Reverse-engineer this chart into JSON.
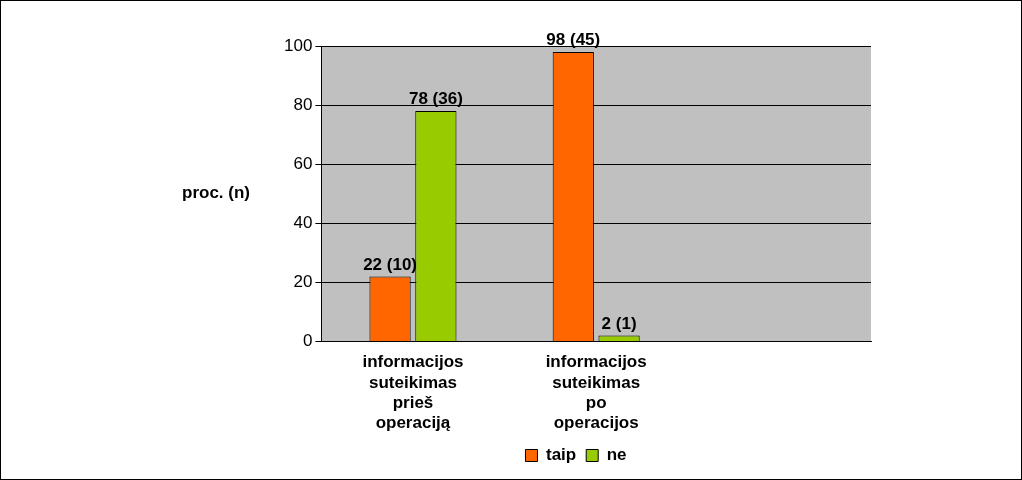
{
  "chart_data": {
    "type": "bar",
    "ylabel": "proc. (n)",
    "categories": [
      "informacijos suteikimas prieš operaciją",
      "informacijos suteikimas po operacijos",
      null
    ],
    "series": [
      {
        "name": "taip",
        "color": "#ff6600",
        "values": [
          22,
          98,
          null
        ],
        "value_labels": [
          "22 (10)",
          "98 (45)",
          null
        ]
      },
      {
        "name": "ne",
        "color": "#99cc00",
        "values": [
          78,
          2,
          null
        ],
        "value_labels": [
          "78 (36)",
          "2 (1)",
          null
        ]
      }
    ],
    "ylim": [
      0,
      100
    ],
    "yticks": [
      0,
      20,
      40,
      60,
      80,
      100
    ],
    "grid": "y",
    "legend": "bottom"
  }
}
